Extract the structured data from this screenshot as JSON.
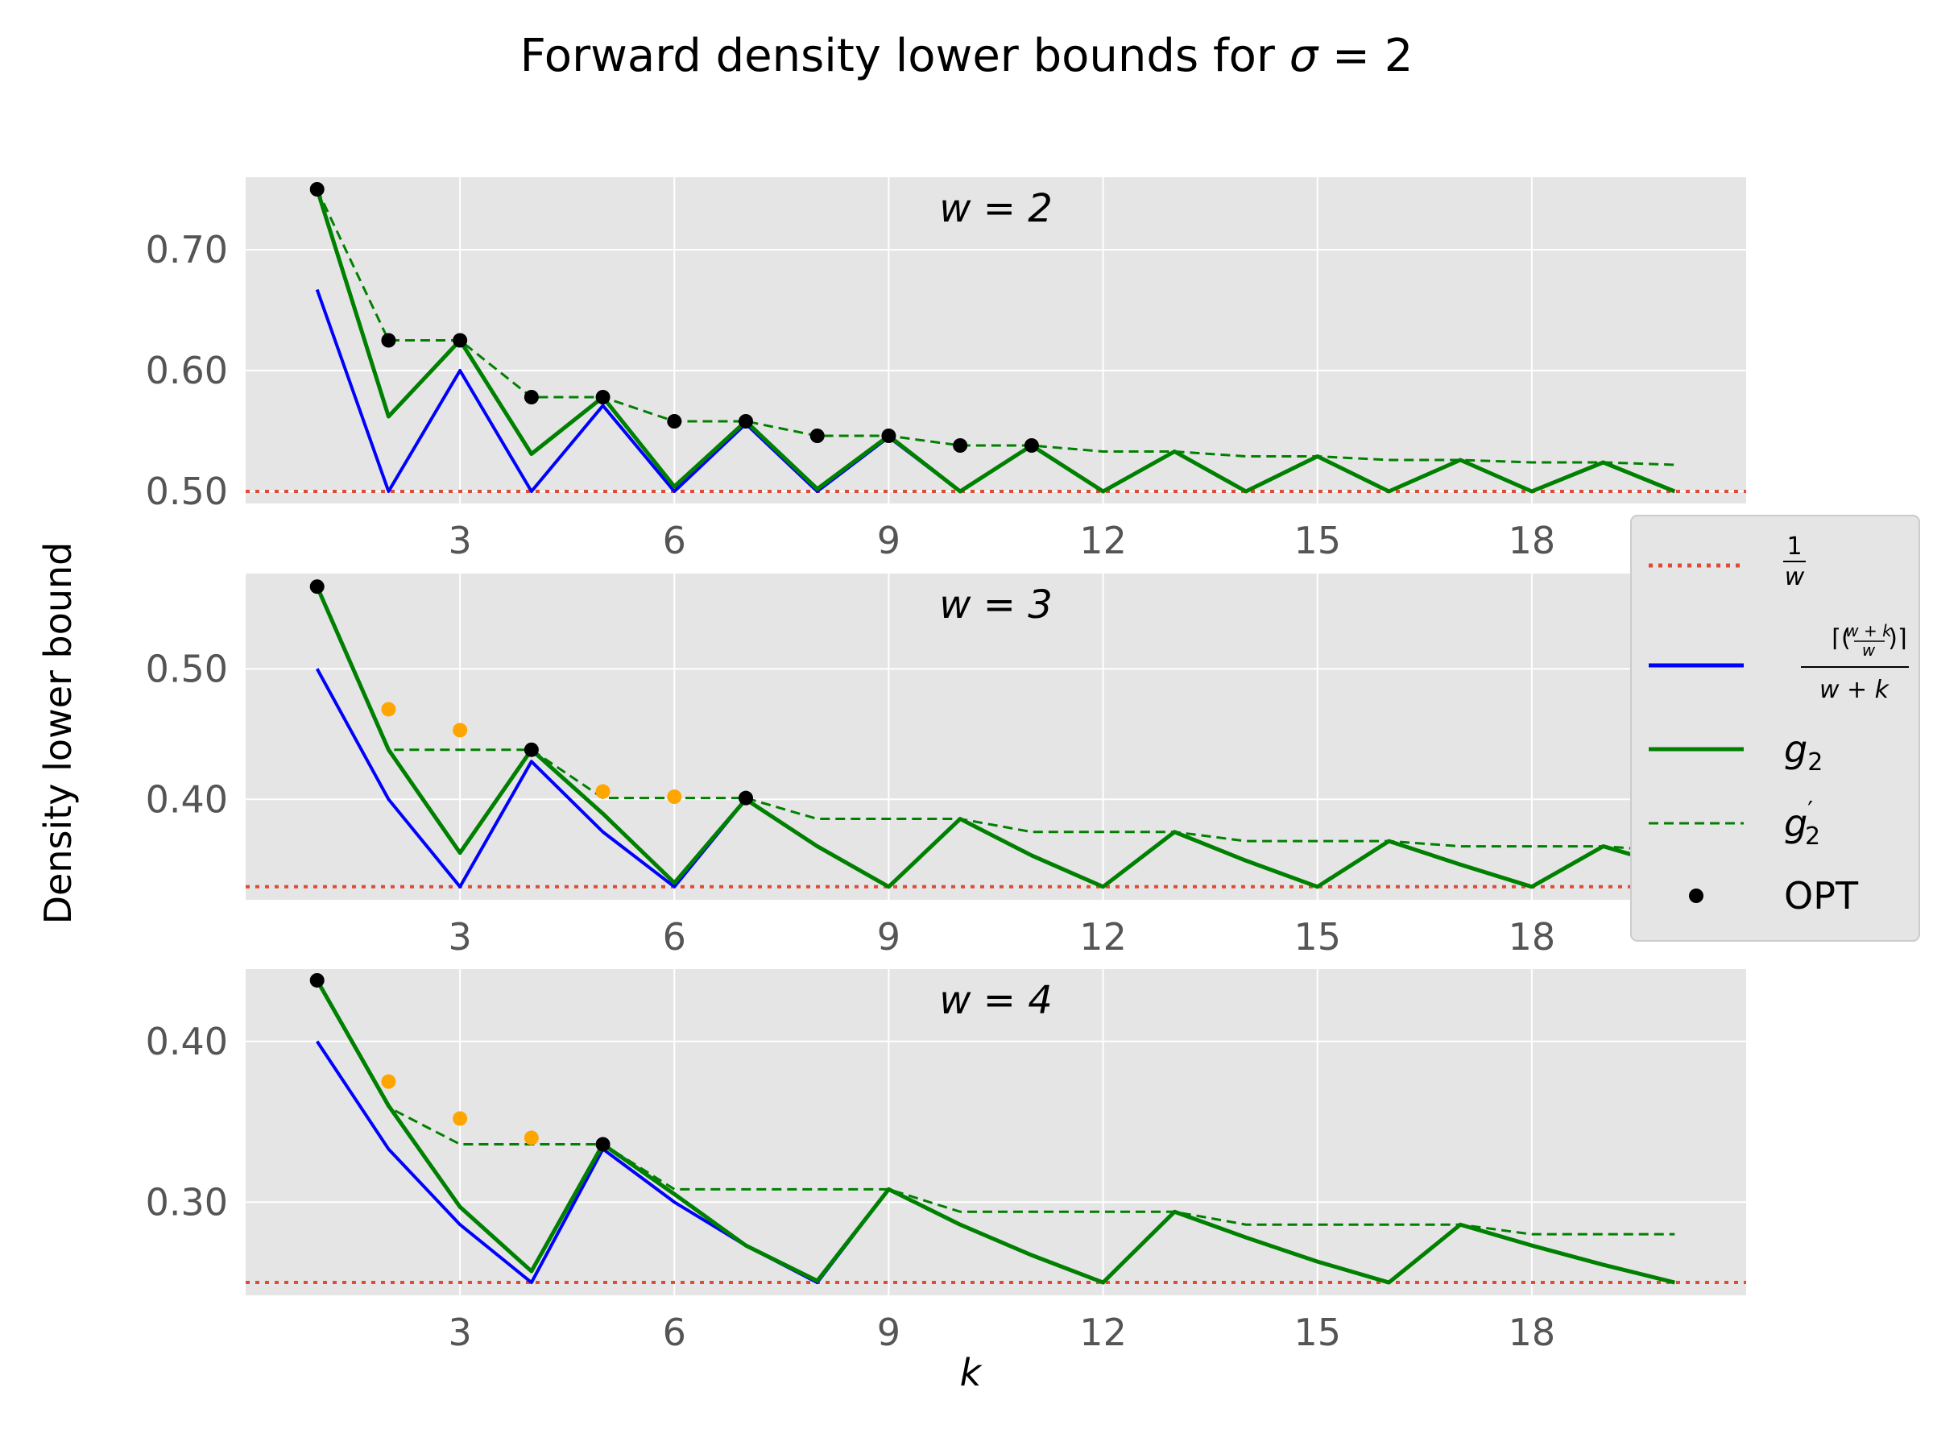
{
  "figure": {
    "title": "Forward density lower bounds for σ = 2",
    "ylabel": "Density lower bound",
    "xlabel": "k"
  },
  "legend": {
    "entries": [
      {
        "key": "recip",
        "label": "1/w",
        "color": "#e24a33",
        "style": "dotted"
      },
      {
        "key": "ceil",
        "label": "⌈(w+k choose w)⌉ / (w+k)",
        "color": "#0000ff",
        "style": "solid"
      },
      {
        "key": "g2",
        "label": "g₂",
        "color": "#008000",
        "style": "solid"
      },
      {
        "key": "g2p",
        "label": "g′₂",
        "color": "#008000",
        "style": "dashed"
      },
      {
        "key": "opt",
        "label": "OPT",
        "color": "#000000",
        "style": "marker"
      }
    ]
  },
  "colors": {
    "background": "#e5e5e5",
    "grid": "#ffffff",
    "recip": "#e24a33",
    "ceil": "#0000ff",
    "g2": "#008000",
    "opt": "#000000",
    "extra": "#ffa500"
  },
  "chart_data": [
    {
      "type": "line",
      "label": "w = 2",
      "w": 2,
      "xticks": [
        3,
        6,
        9,
        12,
        15,
        18
      ],
      "yticks": [
        0.5,
        0.6,
        0.7
      ],
      "xlim": [
        0,
        21
      ],
      "ylim": [
        0.49,
        0.76
      ],
      "x": [
        1,
        2,
        3,
        4,
        5,
        6,
        7,
        8,
        9,
        10,
        11,
        12,
        13,
        14,
        15,
        16,
        17,
        18,
        19,
        20
      ],
      "recip": 0.5,
      "series": [
        {
          "key": "ceil",
          "values": [
            0.667,
            0.5,
            0.6,
            0.5,
            0.571,
            0.5,
            0.556,
            0.5,
            0.545,
            0.5,
            0.538,
            0.5,
            0.533,
            0.5,
            0.529,
            0.5,
            0.526,
            0.5,
            0.524,
            0.5
          ]
        },
        {
          "key": "g2",
          "values": [
            0.75,
            0.562,
            0.625,
            0.531,
            0.578,
            0.504,
            0.558,
            0.502,
            0.546,
            0.5,
            0.538,
            0.5,
            0.533,
            0.5,
            0.529,
            0.5,
            0.526,
            0.5,
            0.524,
            0.5
          ]
        },
        {
          "key": "g2p",
          "values": [
            0.75,
            0.625,
            0.625,
            0.578,
            0.578,
            0.558,
            0.558,
            0.546,
            0.546,
            0.538,
            0.538,
            0.533,
            0.533,
            0.529,
            0.529,
            0.526,
            0.526,
            0.524,
            0.524,
            0.522
          ]
        }
      ],
      "opt": {
        "x": [
          1,
          2,
          3,
          4,
          5,
          6,
          7,
          8,
          9,
          10,
          11
        ],
        "values": [
          0.75,
          0.625,
          0.625,
          0.578,
          0.578,
          0.558,
          0.558,
          0.546,
          0.546,
          0.538,
          0.538
        ]
      },
      "extra_points": {
        "x": [],
        "values": []
      }
    },
    {
      "type": "line",
      "label": "w = 3",
      "w": 3,
      "xticks": [
        3,
        6,
        9,
        12,
        15,
        18
      ],
      "yticks": [
        0.4,
        0.5
      ],
      "xlim": [
        0,
        21
      ],
      "ylim": [
        0.323,
        0.573
      ],
      "x": [
        1,
        2,
        3,
        4,
        5,
        6,
        7,
        8,
        9,
        10,
        11,
        12,
        13,
        14,
        15,
        16,
        17,
        18,
        19,
        20
      ],
      "recip": 0.333,
      "series": [
        {
          "key": "ceil",
          "values": [
            0.5,
            0.4,
            0.333,
            0.429,
            0.375,
            0.333,
            0.4,
            0.364,
            0.333,
            0.385,
            0.357,
            0.333,
            0.375,
            0.353,
            0.333,
            0.368,
            0.35,
            0.333,
            0.364,
            0.348
          ]
        },
        {
          "key": "g2",
          "values": [
            0.563,
            0.438,
            0.359,
            0.438,
            0.389,
            0.336,
            0.4,
            0.364,
            0.333,
            0.385,
            0.357,
            0.333,
            0.375,
            0.353,
            0.333,
            0.368,
            0.35,
            0.333,
            0.364,
            0.348
          ]
        },
        {
          "key": "g2p",
          "values": [
            0.563,
            0.438,
            0.438,
            0.438,
            0.401,
            0.401,
            0.401,
            0.385,
            0.385,
            0.385,
            0.375,
            0.375,
            0.375,
            0.368,
            0.368,
            0.368,
            0.364,
            0.364,
            0.364,
            0.36
          ]
        }
      ],
      "opt": {
        "x": [
          1,
          4,
          7
        ],
        "values": [
          0.563,
          0.438,
          0.401
        ]
      },
      "extra_points": {
        "x": [
          2,
          3,
          5,
          6
        ],
        "values": [
          0.469,
          0.453,
          0.406,
          0.402
        ]
      }
    },
    {
      "type": "line",
      "label": "w = 4",
      "w": 4,
      "xticks": [
        3,
        6,
        9,
        12,
        15,
        18
      ],
      "yticks": [
        0.3,
        0.4
      ],
      "xlim": [
        0,
        21
      ],
      "ylim": [
        0.242,
        0.445
      ],
      "x": [
        1,
        2,
        3,
        4,
        5,
        6,
        7,
        8,
        9,
        10,
        11,
        12,
        13,
        14,
        15,
        16,
        17,
        18,
        19,
        20
      ],
      "recip": 0.25,
      "series": [
        {
          "key": "ceil",
          "values": [
            0.4,
            0.333,
            0.286,
            0.25,
            0.333,
            0.3,
            0.273,
            0.25,
            0.308,
            0.286,
            0.267,
            0.25,
            0.294,
            0.278,
            0.263,
            0.25,
            0.286,
            0.273,
            0.261,
            0.25
          ]
        },
        {
          "key": "g2",
          "values": [
            0.438,
            0.36,
            0.297,
            0.257,
            0.336,
            0.305,
            0.273,
            0.251,
            0.308,
            0.286,
            0.267,
            0.25,
            0.294,
            0.278,
            0.263,
            0.25,
            0.286,
            0.273,
            0.261,
            0.25
          ]
        },
        {
          "key": "g2p",
          "values": [
            0.438,
            0.359,
            0.336,
            0.336,
            0.336,
            0.308,
            0.308,
            0.308,
            0.308,
            0.294,
            0.294,
            0.294,
            0.294,
            0.286,
            0.286,
            0.286,
            0.286,
            0.28,
            0.28,
            0.28
          ]
        }
      ],
      "opt": {
        "x": [
          1,
          5
        ],
        "values": [
          0.438,
          0.336
        ]
      },
      "extra_points": {
        "x": [
          2,
          3,
          4
        ],
        "values": [
          0.375,
          0.352,
          0.34
        ]
      }
    }
  ]
}
